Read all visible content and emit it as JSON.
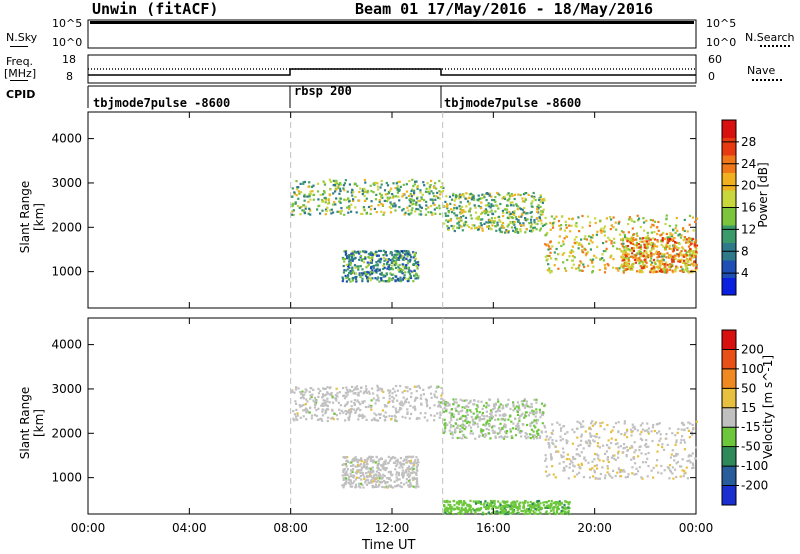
{
  "header": {
    "station": "Unwin (fitACF)",
    "beam_date": "Beam 01  17/May/2016 - 18/May/2016"
  },
  "strips": {
    "nsky_label": "N.Sky",
    "nsky_ticks": [
      "10^5",
      "10^0"
    ],
    "nsearch_label": "N.Search",
    "nsearch_ticks": [
      "10^5",
      "10^0"
    ],
    "freq_label_line1": "Freq.",
    "freq_label_line2": "[MHz]",
    "freq_ticks": [
      "18",
      "8"
    ],
    "nave_label": "Nave",
    "nave_ticks": [
      "60",
      "0"
    ],
    "cpid_label": "CPID",
    "cpid_segments": [
      "tbjmode7pulse -8600",
      "rbsp 200",
      "tbjmode7pulse -8600"
    ]
  },
  "panels": {
    "power": {
      "ylabel": "Slant Range [km]",
      "yticks": [
        "4000",
        "3000",
        "2000",
        "1000"
      ],
      "cbar_label": "Power [dB]",
      "cbar_ticks": [
        "28",
        "24",
        "20",
        "16",
        "12",
        "8",
        "4"
      ]
    },
    "velocity": {
      "ylabel": "Slant Range [km]",
      "yticks": [
        "4000",
        "3000",
        "2000",
        "1000"
      ],
      "cbar_label": "Velocity [m s^-1]",
      "cbar_ticks": [
        "200",
        "100",
        "50",
        "15",
        "-15",
        "-50",
        "-100",
        "-200"
      ]
    }
  },
  "xaxis": {
    "label": "Time UT",
    "ticks": [
      "00:00",
      "04:00",
      "08:00",
      "12:00",
      "16:00",
      "20:00",
      "00:00"
    ]
  },
  "colors": {
    "power_scale": [
      "#0a1fe0",
      "#1f4fb4",
      "#2e7a8a",
      "#3a9a6a",
      "#7cc43c",
      "#c8d83c",
      "#f0b020",
      "#f07818",
      "#e83a10",
      "#d81010"
    ],
    "velocity_scale": [
      "#1a2fd0",
      "#285c9a",
      "#2f8a5a",
      "#6cc83a",
      "#c0c0c0",
      "#e8c040",
      "#f08a20",
      "#e85018",
      "#d81010"
    ],
    "dashed_divider": "#c0c0c0"
  },
  "chart_data": [
    {
      "type": "heatmap",
      "title": "Power",
      "xlabel": "Time UT",
      "ylabel": "Slant Range [km]",
      "xlim": [
        0,
        24
      ],
      "ylim": [
        180,
        4600
      ],
      "colorbar": {
        "label": "Power [dB]",
        "range": [
          0,
          32
        ]
      },
      "mode_boundaries_hours": [
        8,
        14
      ],
      "echo_regions": [
        {
          "t_start": 8,
          "t_end": 14,
          "range_km": [
            2300,
            3100
          ],
          "power_db": 14
        },
        {
          "t_start": 10,
          "t_end": 13,
          "range_km": [
            800,
            1500
          ],
          "power_db": 10
        },
        {
          "t_start": 14,
          "t_end": 18,
          "range_km": [
            1900,
            2800
          ],
          "power_db": 14
        },
        {
          "t_start": 18,
          "t_end": 24,
          "range_km": [
            1000,
            2300
          ],
          "power_db": 18
        },
        {
          "t_start": 21,
          "t_end": 24,
          "range_km": [
            1000,
            1800
          ],
          "power_db": 22
        }
      ]
    },
    {
      "type": "heatmap",
      "title": "Velocity",
      "xlabel": "Time UT",
      "ylabel": "Slant Range [km]",
      "xlim": [
        0,
        24
      ],
      "ylim": [
        180,
        4600
      ],
      "colorbar": {
        "label": "Velocity [m s^-1]",
        "range": [
          -250,
          250
        ]
      },
      "mode_boundaries_hours": [
        8,
        14
      ],
      "echo_regions": [
        {
          "t_start": 8,
          "t_end": 14,
          "range_km": [
            2300,
            3100
          ],
          "velocity": 0
        },
        {
          "t_start": 10,
          "t_end": 13,
          "range_km": [
            800,
            1500
          ],
          "velocity": 0
        },
        {
          "t_start": 14,
          "t_end": 18,
          "range_km": [
            1900,
            2800
          ],
          "velocity": -20
        },
        {
          "t_start": 18,
          "t_end": 24,
          "range_km": [
            1000,
            2300
          ],
          "velocity": 10
        },
        {
          "t_start": 14,
          "t_end": 19,
          "range_km": [
            200,
            500
          ],
          "velocity": -60
        }
      ]
    }
  ]
}
